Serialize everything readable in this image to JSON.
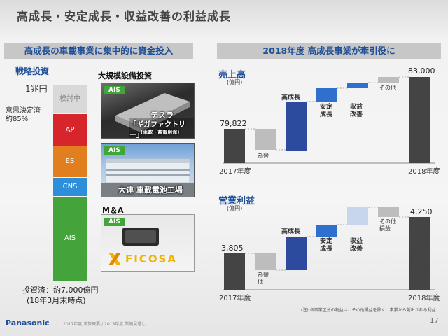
{
  "slide": {
    "title": "高成長・安定成長・収益改善の利益成長",
    "page_number": "17",
    "footer_brand": "Panasonic",
    "footer_note": "2017年度 決算概要 / 2018年度 業績見通し",
    "footnote": "(注) 各事業区分の利益は、その他損益を除く、事業から創出される利益"
  },
  "left": {
    "banner": "高成長の車載事業に集中的に資金投入",
    "section_label": "戦略投資",
    "axis_top": "1兆円",
    "decided_label": "意思決定済\n約85%",
    "summary_line1": "投資済：約7,000億円",
    "summary_line2": "(18年3月末時点)",
    "stack": [
      {
        "label": "検討中",
        "color": "#d9d9d9",
        "text_color": "#888888"
      },
      {
        "label": "AP",
        "color": "#d6262b",
        "text_color": "#ffffff"
      },
      {
        "label": "ES",
        "color": "#e17f1e",
        "text_color": "#ffffff"
      },
      {
        "label": "CNS",
        "color": "#2d8fd9",
        "text_color": "#ffffff"
      },
      {
        "label": "AIS",
        "color": "#44a33a",
        "text_color": "#ffffff"
      }
    ],
    "big_invest_label": "大規模設備投資",
    "ma_label": "M＆A",
    "photos": [
      {
        "tag": "AIS",
        "caption_line1": "テスラ",
        "caption_line2": "「ギガファクトリー」",
        "caption_line3": "(車載・蓄電用途)"
      },
      {
        "tag": "AIS",
        "caption_line1": "大連 車載電池工場"
      },
      {
        "tag": "AIS",
        "caption_line1": "FICOSA"
      }
    ]
  },
  "right": {
    "banner": "2018年度 高成長事業が牽引役に",
    "sales": {
      "title": "売上高",
      "unit": "(億円)",
      "start_value": "79,822",
      "end_value": "83,000",
      "start_label": "2017年度",
      "end_label": "2018年度",
      "steps": [
        "為替",
        "高成長",
        "安定\n成長",
        "収益\n改善",
        "その他"
      ]
    },
    "profit": {
      "title": "営業利益",
      "unit": "(億円)",
      "start_value": "3,805",
      "end_value": "4,250",
      "start_label": "2017年度",
      "end_label": "2018年度",
      "steps": [
        "為替\n他",
        "高成長",
        "安定\n成長",
        "収益\n改善",
        "その他\n損益"
      ]
    }
  },
  "chart_data": [
    {
      "type": "bar",
      "title": "売上高",
      "ylabel": "(億円)",
      "categories": [
        "2017年度",
        "為替",
        "高成長",
        "安定成長",
        "収益改善",
        "その他",
        "2018年度"
      ],
      "values": [
        79822,
        null,
        null,
        null,
        null,
        null,
        83000
      ]
    },
    {
      "type": "bar",
      "title": "営業利益",
      "ylabel": "(億円)",
      "categories": [
        "2017年度",
        "為替他",
        "高成長",
        "安定成長",
        "収益改善",
        "その他損益",
        "2018年度"
      ],
      "values": [
        3805,
        null,
        null,
        null,
        null,
        null,
        4250
      ]
    }
  ]
}
